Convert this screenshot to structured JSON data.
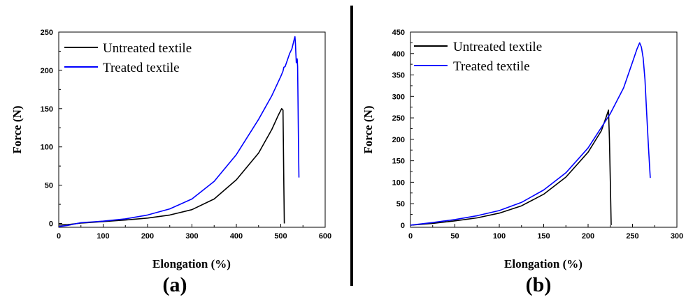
{
  "chart_data": [
    {
      "type": "line",
      "panel_label": "(a)",
      "xlabel": "Elongation (%)",
      "ylabel": "Force (N)",
      "xlim": [
        0,
        600
      ],
      "ylim": [
        -5,
        250
      ],
      "xticks": [
        0,
        100,
        200,
        300,
        400,
        500,
        600
      ],
      "yticks": [
        0,
        50,
        100,
        150,
        200,
        250
      ],
      "grid": false,
      "legend_position": "top-left",
      "series": [
        {
          "name": "Untreated textile",
          "color": "#000000",
          "points": [
            [
              0,
              -2
            ],
            [
              20,
              -1.5
            ],
            [
              50,
              0.5
            ],
            [
              100,
              2.5
            ],
            [
              150,
              4.5
            ],
            [
              200,
              7
            ],
            [
              250,
              11
            ],
            [
              300,
              18
            ],
            [
              350,
              32
            ],
            [
              400,
              57
            ],
            [
              450,
              92
            ],
            [
              480,
              123
            ],
            [
              495,
              142
            ],
            [
              502,
              150
            ],
            [
              505,
              148
            ],
            [
              506,
              100
            ],
            [
              507,
              50
            ],
            [
              508,
              0
            ]
          ]
        },
        {
          "name": "Treated textile",
          "color": "#0000ff",
          "points": [
            [
              0,
              -4
            ],
            [
              20,
              -2.5
            ],
            [
              50,
              1
            ],
            [
              100,
              3
            ],
            [
              150,
              6
            ],
            [
              200,
              11
            ],
            [
              250,
              19
            ],
            [
              300,
              32
            ],
            [
              350,
              55
            ],
            [
              400,
              90
            ],
            [
              450,
              136
            ],
            [
              480,
              167
            ],
            [
              500,
              192
            ],
            [
              505,
              199
            ],
            [
              507,
              204
            ],
            [
              510,
              205
            ],
            [
              520,
              222
            ],
            [
              525,
              228
            ],
            [
              530,
              240
            ],
            [
              532,
              244
            ],
            [
              533,
              235
            ],
            [
              534,
              222
            ],
            [
              535,
              210
            ],
            [
              537,
              215
            ],
            [
              538,
              205
            ],
            [
              539,
              150
            ],
            [
              540,
              100
            ],
            [
              541,
              60
            ]
          ]
        }
      ]
    },
    {
      "type": "line",
      "panel_label": "(b)",
      "xlabel": "Elongation (%)",
      "ylabel": "Force (N)",
      "xlim": [
        0,
        300
      ],
      "ylim": [
        -5,
        450
      ],
      "xticks": [
        0,
        50,
        100,
        150,
        200,
        250,
        300
      ],
      "yticks": [
        0,
        50,
        100,
        150,
        200,
        250,
        300,
        350,
        400,
        450
      ],
      "grid": false,
      "legend_position": "top-left",
      "series": [
        {
          "name": "Untreated textile",
          "color": "#000000",
          "points": [
            [
              0,
              0
            ],
            [
              25,
              4
            ],
            [
              50,
              10
            ],
            [
              75,
              17
            ],
            [
              100,
              28
            ],
            [
              125,
              45
            ],
            [
              150,
              72
            ],
            [
              175,
              112
            ],
            [
              200,
              170
            ],
            [
              215,
              220
            ],
            [
              220,
              250
            ],
            [
              223,
              268
            ],
            [
              224,
              200
            ],
            [
              225,
              100
            ],
            [
              226,
              0
            ]
          ]
        },
        {
          "name": "Treated textile",
          "color": "#0000ff",
          "points": [
            [
              0,
              0
            ],
            [
              25,
              6
            ],
            [
              50,
              13
            ],
            [
              75,
              22
            ],
            [
              100,
              34
            ],
            [
              125,
              53
            ],
            [
              150,
              82
            ],
            [
              175,
              122
            ],
            [
              200,
              180
            ],
            [
              225,
              260
            ],
            [
              240,
              320
            ],
            [
              250,
              380
            ],
            [
              255,
              410
            ],
            [
              258,
              425
            ],
            [
              260,
              415
            ],
            [
              262,
              390
            ],
            [
              264,
              340
            ],
            [
              266,
              260
            ],
            [
              268,
              180
            ],
            [
              270,
              110
            ]
          ]
        }
      ]
    }
  ]
}
